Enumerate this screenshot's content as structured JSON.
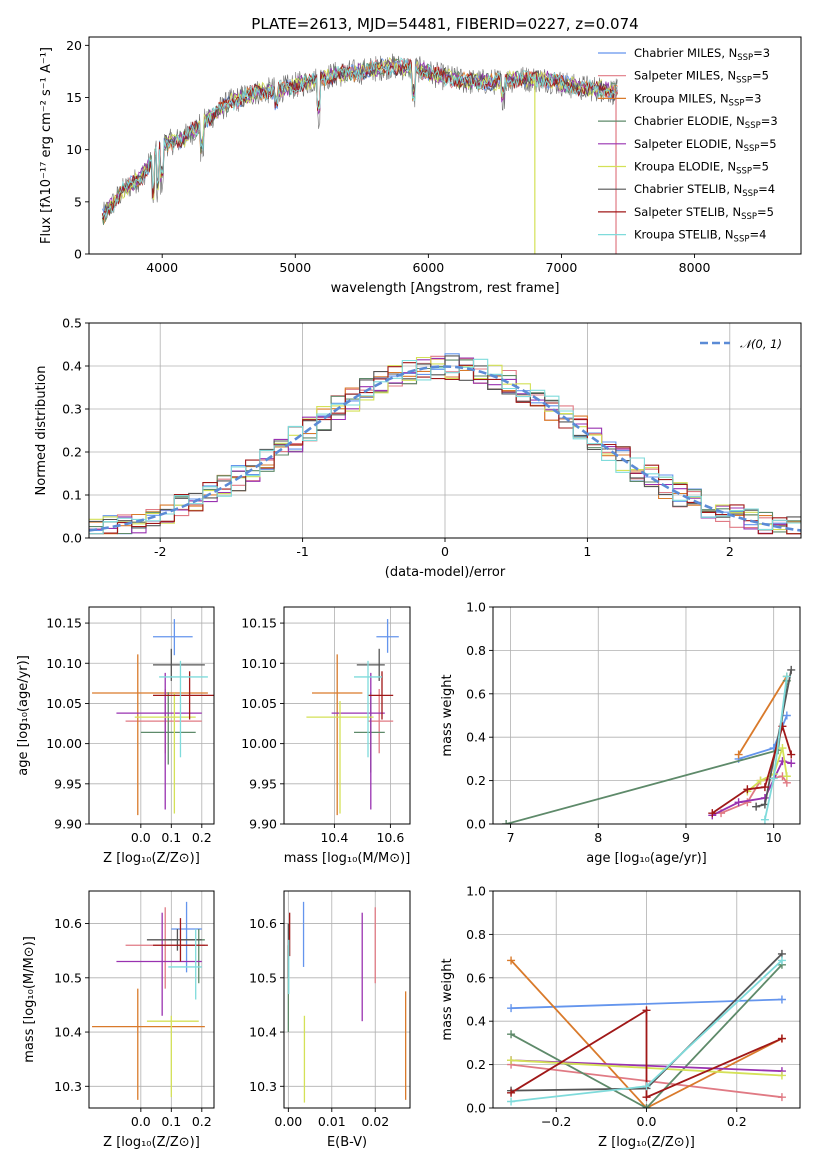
{
  "figure_title": "PLATE=2613, MJD=54481, FIBERID=0227, z=0.074",
  "models": [
    {
      "name": "Chabrier MILES, N$_{SSP}$=3",
      "label_main": "Chabrier MILES, N",
      "label_sub": "SSP",
      "label_tail": "=3",
      "color": "#6495ed"
    },
    {
      "name": "Salpeter MILES, N$_{SSP}$=5",
      "label_main": "Salpeter MILES, N",
      "label_sub": "SSP",
      "label_tail": "=5",
      "color": "#e07a84"
    },
    {
      "name": "Kroupa MILES, N$_{SSP}$=3",
      "label_main": "Kroupa MILES, N",
      "label_sub": "SSP",
      "label_tail": "=3",
      "color": "#d97a2b"
    },
    {
      "name": "Chabrier ELODIE, N$_{SSP}$=3",
      "label_main": "Chabrier ELODIE, N",
      "label_sub": "SSP",
      "label_tail": "=3",
      "color": "#5e8a6a"
    },
    {
      "name": "Salpeter ELODIE, N$_{SSP}$=5",
      "label_main": "Salpeter ELODIE, N",
      "label_sub": "SSP",
      "label_tail": "=5",
      "color": "#9932b0"
    },
    {
      "name": "Kroupa ELODIE, N$_{SSP}$=5",
      "label_main": "Kroupa ELODIE, N",
      "label_sub": "SSP",
      "label_tail": "=5",
      "color": "#d4e157"
    },
    {
      "name": "Chabrier STELIB, N$_{SSP}$=4",
      "label_main": "Chabrier STELIB, N",
      "label_sub": "SSP",
      "label_tail": "=4",
      "color": "#555555"
    },
    {
      "name": "Salpeter STELIB, N$_{SSP}$=5",
      "label_main": "Salpeter STELIB, N",
      "label_sub": "SSP",
      "label_tail": "=5",
      "color": "#a01818"
    },
    {
      "name": "Kroupa STELIB, N$_{SSP}$=4",
      "label_main": "Kroupa STELIB, N",
      "label_sub": "SSP",
      "label_tail": "=4",
      "color": "#7fdbdb"
    }
  ],
  "chart_data": [
    {
      "id": "spectrum",
      "type": "line",
      "xlabel": "wavelength [Angstrom, rest frame]",
      "ylabel": "Flux [f$_\\lambda$10$^{-17}$ erg cm$^{-2}$ s$^{-1}$ A$^{-1}$]",
      "ylabel_display": "Flux [fλ10⁻¹⁷ erg cm⁻² s⁻¹ A⁻¹]",
      "xlim": [
        3450,
        8800
      ],
      "ylim": [
        0,
        20.8
      ],
      "xticks": [
        4000,
        5000,
        6000,
        7000,
        8000
      ],
      "yticks": [
        0,
        5,
        10,
        15,
        20
      ],
      "continuum_x": [
        3550,
        3700,
        3850,
        4000,
        4150,
        4300,
        4500,
        4700,
        4900,
        5100,
        5300,
        5500,
        5700,
        5900,
        6100,
        6300,
        6500,
        6700,
        6900,
        7100,
        7300,
        7420
      ],
      "continuum_y": [
        3.5,
        6.0,
        7.5,
        10.5,
        11.0,
        12.5,
        14.5,
        15.5,
        15.8,
        16.5,
        17.2,
        17.5,
        18.0,
        17.8,
        17.0,
        16.5,
        16.5,
        16.8,
        16.7,
        16.0,
        15.8,
        15.5
      ],
      "observed_color": "#707070",
      "drops": [
        {
          "x": 6800,
          "model": "Kroupa ELODIE, N$_{SSP}$=5"
        },
        {
          "x": 7410,
          "model": "Salpeter MILES, N$_{SSP}$=5"
        }
      ],
      "grid": false,
      "legend": "upper right"
    },
    {
      "id": "residual_histogram",
      "type": "histogram",
      "xlabel": "(data-model)/error",
      "ylabel": "Normed distribution",
      "xlim": [
        -2.5,
        2.5
      ],
      "ylim": [
        0,
        0.5
      ],
      "xticks": [
        -2,
        -1,
        0,
        1,
        2
      ],
      "yticks": [
        0.0,
        0.1,
        0.2,
        0.3,
        0.4,
        0.5
      ],
      "bin_width": 0.1,
      "reference_curve": {
        "name": "$\\mathcal{N}(0,1)$",
        "label_display": "𝒩(0, 1)",
        "mean": 0,
        "sigma": 1,
        "color": "#5b8bd6"
      },
      "grid": true,
      "legend": "upper right"
    },
    {
      "id": "age_vs_Z",
      "type": "scatter",
      "xlabel": "Z [log$_{10}$(Z/Z$_\\odot$)]",
      "xlabel_display": "Z [log₁₀(Z/Z⊙)]",
      "ylabel": "age  [log$_{10}$(age/yr)]",
      "ylabel_display": "age  [log₁₀(age/yr)]",
      "xlim": [
        -0.17,
        0.24
      ],
      "ylim": [
        9.9,
        10.17
      ],
      "xticks": [
        0.0,
        0.1,
        0.2
      ],
      "xtick_labels": [
        "0.0",
        "0.1",
        "0.2"
      ],
      "yticks": [
        9.9,
        9.95,
        10.0,
        10.05,
        10.1,
        10.15
      ],
      "ytick_labels": [
        "9.90",
        "9.95",
        "10.00",
        "10.05",
        "10.10",
        "10.15"
      ],
      "points": [
        {
          "x": 0.11,
          "y": 10.133,
          "xerr": [
            0.07,
            0.06
          ],
          "yerr": [
            0.023,
            0.022
          ]
        },
        {
          "x": 0.08,
          "y": 10.028,
          "xerr": [
            0.13,
            0.12
          ],
          "yerr": [
            0.04,
            0.04
          ]
        },
        {
          "x": -0.01,
          "y": 10.063,
          "xerr": [
            0.15,
            0.23
          ],
          "yerr": [
            0.152,
            0.048
          ]
        },
        {
          "x": 0.09,
          "y": 10.014,
          "xerr": [
            0.09,
            0.09
          ],
          "yerr": [
            0.04,
            0.05
          ]
        },
        {
          "x": 0.08,
          "y": 10.038,
          "xerr": [
            0.16,
            0.12
          ],
          "yerr": [
            0.12,
            0.05
          ]
        },
        {
          "x": 0.11,
          "y": 10.033,
          "xerr": [
            0.13,
            0.07
          ],
          "yerr": [
            0.12,
            0.03
          ]
        },
        {
          "x": 0.1,
          "y": 10.098,
          "xerr": [
            0.06,
            0.11
          ],
          "yerr": [
            0.02,
            0.02
          ]
        },
        {
          "x": 0.16,
          "y": 10.06,
          "xerr": [
            0.12,
            0.12
          ],
          "yerr": [
            0.03,
            0.03
          ]
        },
        {
          "x": 0.13,
          "y": 10.083,
          "xerr": [
            0.07,
            0.09
          ],
          "yerr": [
            0.1,
            0.02
          ]
        }
      ],
      "grid": true
    },
    {
      "id": "age_vs_mass",
      "type": "scatter",
      "xlabel": "mass [log$_{10}$(M/M$_\\odot$)]",
      "xlabel_display": "mass [log₁₀(M/M⊙)]",
      "xlim": [
        10.22,
        10.67
      ],
      "ylim": [
        9.9,
        10.17
      ],
      "xticks": [
        10.4,
        10.6
      ],
      "xtick_labels": [
        "10.4",
        "10.6"
      ],
      "yticks": [
        9.9,
        9.95,
        10.0,
        10.05,
        10.1,
        10.15
      ],
      "ytick_labels": [
        "9.90",
        "9.95",
        "10.00",
        "10.05",
        "10.10",
        "10.15"
      ],
      "points": [
        {
          "x": 10.59,
          "y": 10.133,
          "xerr": [
            0.04,
            0.04
          ],
          "yerr": [
            0.02,
            0.022
          ]
        },
        {
          "x": 10.56,
          "y": 10.028,
          "xerr": [
            0.04,
            0.05
          ],
          "yerr": [
            0.04,
            0.04
          ]
        },
        {
          "x": 10.41,
          "y": 10.063,
          "xerr": [
            0.09,
            0.09
          ],
          "yerr": [
            0.152,
            0.048
          ]
        },
        {
          "x": 10.53,
          "y": 10.014,
          "xerr": [
            0.06,
            0.05
          ],
          "yerr": [
            0.05,
            0.05
          ]
        },
        {
          "x": 10.53,
          "y": 10.038,
          "xerr": [
            0.14,
            0.05
          ],
          "yerr": [
            0.12,
            0.05
          ]
        },
        {
          "x": 10.42,
          "y": 10.033,
          "xerr": [
            0.12,
            0.12
          ],
          "yerr": [
            0.12,
            0.02
          ]
        },
        {
          "x": 10.56,
          "y": 10.098,
          "xerr": [
            0.08,
            0.02
          ],
          "yerr": [
            0.02,
            0.02
          ]
        },
        {
          "x": 10.57,
          "y": 10.06,
          "xerr": [
            0.05,
            0.04
          ],
          "yerr": [
            0.03,
            0.03
          ]
        },
        {
          "x": 10.52,
          "y": 10.083,
          "xerr": [
            0.05,
            0.05
          ],
          "yerr": [
            0.1,
            0.02
          ]
        }
      ],
      "grid": true
    },
    {
      "id": "mass_weight_vs_age",
      "type": "line",
      "xlabel": "age  [log$_{10}$(age/yr)]",
      "xlabel_display": "age  [log₁₀(age/yr)]",
      "ylabel": "mass weight",
      "xlim": [
        6.8,
        10.3
      ],
      "ylim": [
        0,
        1
      ],
      "xticks": [
        7,
        8,
        9,
        10
      ],
      "xtick_labels": [
        "7",
        "8",
        "9",
        "10"
      ],
      "yticks": [
        0,
        0.2,
        0.4,
        0.6,
        0.8,
        1.0
      ],
      "ytick_labels": [
        "0.0",
        "0.2",
        "0.4",
        "0.6",
        "0.8",
        "1.0"
      ],
      "series": [
        {
          "x": [
            9.6,
            10.0,
            10.15
          ],
          "y": [
            0.3,
            0.35,
            0.5
          ]
        },
        {
          "x": [
            9.4,
            9.7,
            9.85,
            10.1,
            10.15
          ],
          "y": [
            0.05,
            0.1,
            0.2,
            0.22,
            0.19
          ]
        },
        {
          "x": [
            9.6,
            10.15
          ],
          "y": [
            0.32,
            0.68
          ]
        },
        {
          "x": [
            6.95,
            10.05,
            10.15
          ],
          "y": [
            0.0,
            0.34,
            0.66
          ]
        },
        {
          "x": [
            9.3,
            9.6,
            9.9,
            10.1,
            10.2
          ],
          "y": [
            0.04,
            0.1,
            0.12,
            0.29,
            0.28
          ]
        },
        {
          "x": [
            9.7,
            9.85,
            10.0,
            10.1,
            10.15
          ],
          "y": [
            0.15,
            0.2,
            0.23,
            0.35,
            0.22
          ]
        },
        {
          "x": [
            9.8,
            9.9,
            10.2
          ],
          "y": [
            0.08,
            0.09,
            0.71
          ]
        },
        {
          "x": [
            9.3,
            9.7,
            9.9,
            10.1,
            10.2
          ],
          "y": [
            0.05,
            0.16,
            0.17,
            0.45,
            0.32
          ]
        },
        {
          "x": [
            9.9,
            10.0,
            10.15
          ],
          "y": [
            0.02,
            0.21,
            0.68
          ]
        }
      ],
      "grid": true
    },
    {
      "id": "mass_vs_Z",
      "type": "scatter",
      "xlabel": "Z [log$_{10}$(Z/Z$_\\odot$)]",
      "xlabel_display": "Z [log₁₀(Z/Z⊙)]",
      "ylabel": "mass [log$_{10}$(M/M$_\\odot$)]",
      "ylabel_display": "mass [log₁₀(M/M⊙)]",
      "xlim": [
        -0.17,
        0.24
      ],
      "ylim": [
        10.26,
        10.66
      ],
      "xticks": [
        0.0,
        0.1,
        0.2
      ],
      "xtick_labels": [
        "0.0",
        "0.1",
        "0.2"
      ],
      "yticks": [
        10.3,
        10.4,
        10.5,
        10.6
      ],
      "ytick_labels": [
        "10.3",
        "10.4",
        "10.5",
        "10.6"
      ],
      "points": [
        {
          "x": 0.15,
          "y": 10.59,
          "xerr": [
            0.05,
            0.05
          ],
          "yerr": [
            0.08,
            0.05
          ]
        },
        {
          "x": 0.08,
          "y": 10.56,
          "xerr": [
            0.13,
            0.13
          ],
          "yerr": [
            0.08,
            0.07
          ]
        },
        {
          "x": -0.01,
          "y": 10.41,
          "xerr": [
            0.15,
            0.22
          ],
          "yerr": [
            0.135,
            0.07
          ]
        },
        {
          "x": 0.19,
          "y": 10.57,
          "xerr": [
            0.1,
            0.02
          ],
          "yerr": [
            0.08,
            0.02
          ]
        },
        {
          "x": 0.07,
          "y": 10.53,
          "xerr": [
            0.15,
            0.13
          ],
          "yerr": [
            0.1,
            0.09
          ]
        },
        {
          "x": 0.1,
          "y": 10.42,
          "xerr": [
            0.08,
            0.09
          ],
          "yerr": [
            0.14,
            0.01
          ]
        },
        {
          "x": 0.12,
          "y": 10.57,
          "xerr": [
            0.1,
            0.08
          ],
          "yerr": [
            0.02,
            0.02
          ]
        },
        {
          "x": 0.13,
          "y": 10.56,
          "xerr": [
            0.09,
            0.09
          ],
          "yerr": [
            0.03,
            0.05
          ]
        },
        {
          "x": 0.18,
          "y": 10.52,
          "xerr": [
            0.09,
            0.02
          ],
          "yerr": [
            0.06,
            0.07
          ]
        }
      ],
      "grid": true
    },
    {
      "id": "mass_vs_EBV",
      "type": "scatter",
      "xlabel": "E(B-V)",
      "xlim": [
        -0.001,
        0.028
      ],
      "ylim": [
        10.26,
        10.66
      ],
      "xticks": [
        0.0,
        0.01,
        0.02
      ],
      "xtick_labels": [
        "0.00",
        "0.01",
        "0.02"
      ],
      "yticks": [
        10.3,
        10.4,
        10.5,
        10.6
      ],
      "ytick_labels": [
        "10.3",
        "10.4",
        "10.5",
        "10.6"
      ],
      "points": [
        {
          "x": 0.0035,
          "y": 10.58,
          "xerr": [
            0,
            0
          ],
          "yerr": [
            0.06,
            0.06
          ]
        },
        {
          "x": 0.02,
          "y": 10.56,
          "xerr": [
            0,
            0
          ],
          "yerr": [
            0.07,
            0.07
          ]
        },
        {
          "x": 0.027,
          "y": 10.375,
          "xerr": [
            0,
            0
          ],
          "yerr": [
            0.1,
            0.1
          ]
        },
        {
          "x": 0.0,
          "y": 10.48,
          "xerr": [
            0,
            0
          ],
          "yerr": [
            0.08,
            0.08
          ]
        },
        {
          "x": 0.017,
          "y": 10.52,
          "xerr": [
            0,
            0
          ],
          "yerr": [
            0.1,
            0.1
          ]
        },
        {
          "x": 0.0037,
          "y": 10.35,
          "xerr": [
            0,
            0
          ],
          "yerr": [
            0.08,
            0.08
          ]
        },
        {
          "x": 0.0,
          "y": 10.55,
          "xerr": [
            0,
            0
          ],
          "yerr": [
            0.05,
            0.05
          ]
        },
        {
          "x": 0.0003,
          "y": 10.58,
          "xerr": [
            0,
            0
          ],
          "yerr": [
            0.04,
            0.04
          ]
        },
        {
          "x": 0.0001,
          "y": 10.52,
          "xerr": [
            0,
            0
          ],
          "yerr": [
            0.05,
            0.05
          ]
        }
      ],
      "grid": true
    },
    {
      "id": "mass_weight_vs_Z",
      "type": "line",
      "xlabel": "Z [log$_{10}$(Z/Z$_\\odot$)]",
      "xlabel_display": "Z [log₁₀(Z/Z⊙)]",
      "ylabel": "mass weight",
      "xlim": [
        -0.34,
        0.34
      ],
      "ylim": [
        0,
        1
      ],
      "xticks": [
        -0.2,
        0.0,
        0.2
      ],
      "xtick_labels": [
        "−0.2",
        "0.0",
        "0.2"
      ],
      "yticks": [
        0,
        0.2,
        0.4,
        0.6,
        0.8,
        1.0
      ],
      "ytick_labels": [
        "0.0",
        "0.2",
        "0.4",
        "0.6",
        "0.8",
        "1.0"
      ],
      "series": [
        {
          "x": [
            -0.3,
            0.3
          ],
          "y": [
            0.46,
            0.5
          ]
        },
        {
          "x": [
            -0.3,
            0.3
          ],
          "y": [
            0.2,
            0.05
          ]
        },
        {
          "x": [
            -0.3,
            0.0,
            0.3
          ],
          "y": [
            0.68,
            0.0,
            0.32
          ]
        },
        {
          "x": [
            -0.3,
            0.0,
            0.3
          ],
          "y": [
            0.34,
            0.0,
            0.66
          ]
        },
        {
          "x": [
            -0.3,
            0.3
          ],
          "y": [
            0.22,
            0.17
          ]
        },
        {
          "x": [
            -0.3,
            0.3
          ],
          "y": [
            0.22,
            0.15
          ]
        },
        {
          "x": [
            -0.3,
            0.0,
            0.3
          ],
          "y": [
            0.08,
            0.09,
            0.71
          ]
        },
        {
          "x": [
            -0.3,
            0.0,
            0.0,
            0.3
          ],
          "y": [
            0.07,
            0.45,
            0.05,
            0.32
          ]
        },
        {
          "x": [
            -0.3,
            0.0,
            0.3
          ],
          "y": [
            0.03,
            0.1,
            0.68
          ]
        }
      ],
      "grid": true
    }
  ]
}
